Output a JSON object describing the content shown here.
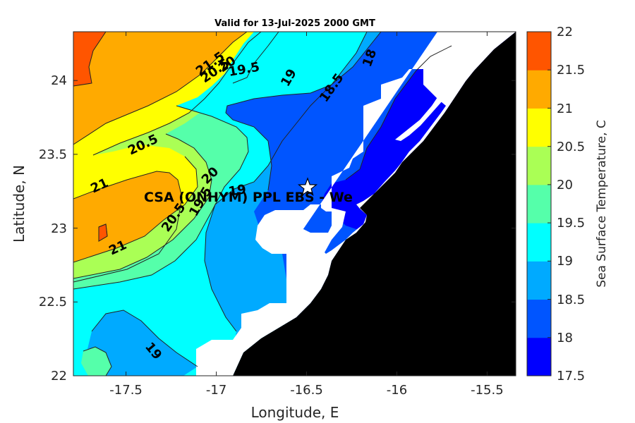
{
  "title": "Valid for 13-Jul-2025 2000 GMT",
  "x_axis": {
    "label": "Longitude, E",
    "range": [
      -17.8,
      -15.35
    ],
    "ticks": [
      "-17.5",
      "-17",
      "-16.5",
      "-16",
      "-15.5"
    ]
  },
  "y_axis": {
    "label": "Latitude, N",
    "range": [
      22.0,
      24.33
    ],
    "ticks": [
      "22",
      "22.5",
      "23",
      "23.5",
      "24"
    ]
  },
  "colorbar": {
    "label": "Sea Surface Temperature, C",
    "ticks": [
      "17.5",
      "18",
      "18.5",
      "19",
      "19.5",
      "20",
      "20.5",
      "21",
      "21.5",
      "22"
    ],
    "bands": [
      {
        "range": "17.5-18",
        "color": "#0000ff"
      },
      {
        "range": "18-18.5",
        "color": "#0055ff"
      },
      {
        "range": "18.5-19",
        "color": "#00aaff"
      },
      {
        "range": "19-19.5",
        "color": "#00ffff"
      },
      {
        "range": "19.5-20",
        "color": "#55ff aa"
      },
      {
        "range": "20-20.5",
        "color": "#aaff55"
      },
      {
        "range": "20.5-21",
        "color": "#ffff00"
      },
      {
        "range": "21-21.5",
        "color": "#ffaa00"
      },
      {
        "range": "21.5-22",
        "color": "#ff5500"
      }
    ]
  },
  "contour_labels": [
    {
      "text": "21.5"
    },
    {
      "text": "20.5"
    },
    {
      "text": "20"
    },
    {
      "text": "19.5"
    },
    {
      "text": "19"
    },
    {
      "text": "18.5"
    },
    {
      "text": "18"
    },
    {
      "text": "20.5"
    },
    {
      "text": "21"
    },
    {
      "text": "20"
    },
    {
      "text": "19"
    },
    {
      "text": "19.5"
    },
    {
      "text": "20.5"
    },
    {
      "text": "21"
    },
    {
      "text": "19"
    }
  ],
  "station": {
    "label": "CSA (ONHYM) PPL EBS  - We",
    "marker": "star-icon",
    "longitude": -16.48,
    "latitude": 23.29
  },
  "land_color": "#000000"
}
